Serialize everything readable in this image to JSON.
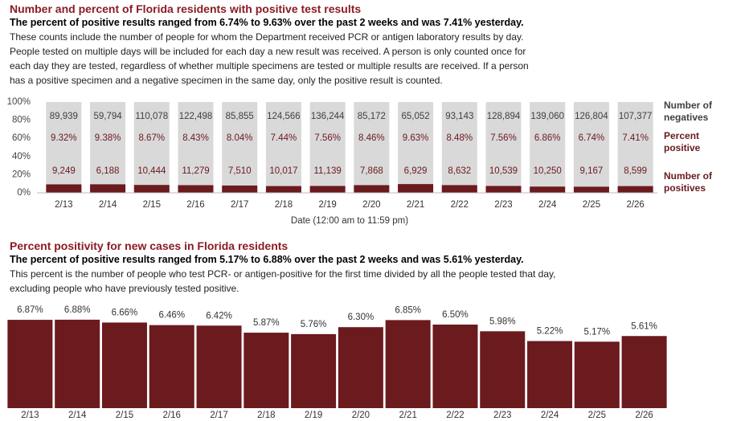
{
  "chart_data": [
    {
      "type": "percent_bar",
      "title": "Number and percent of Florida residents with positive test results",
      "subtitle": "The percent of positive results ranged from 6.74% to 9.63% over the past 2 weeks and was 7.41% yesterday.",
      "description": [
        "These counts include the number of people for whom the Department received PCR or antigen laboratory results by day.",
        "People tested on multiple days will be included for each day a new result was received. A person is only counted once for",
        "each day they are tested, regardless of whether multiple specimens are tested or multiple results are received. If a person",
        "has a positive specimen and a negative specimen in the same day, only the positive result is counted."
      ],
      "x_label": "Date (12:00 am to 11:59 pm)",
      "categories": [
        "2/13",
        "2/14",
        "2/15",
        "2/16",
        "2/17",
        "2/18",
        "2/19",
        "2/20",
        "2/21",
        "2/22",
        "2/23",
        "2/24",
        "2/25",
        "2/26"
      ],
      "ylim": [
        0,
        100
      ],
      "yticks": [
        {
          "value": 0,
          "label": "0%"
        },
        {
          "value": 20,
          "label": "20%"
        },
        {
          "value": 40,
          "label": "40%"
        },
        {
          "value": 60,
          "label": "60%"
        },
        {
          "value": 80,
          "label": "80%"
        },
        {
          "value": 100,
          "label": "100%"
        }
      ],
      "track_color": "#d9d9d9",
      "series": [
        {
          "name": "Number of negatives",
          "color": "#404040",
          "mark": "label",
          "values": [
            89939,
            59794,
            110078,
            122498,
            85855,
            124566,
            136244,
            85172,
            65052,
            93143,
            128894,
            139060,
            126804,
            107377
          ],
          "value_labels": [
            "89,939",
            "59,794",
            "110,078",
            "122,498",
            "85,855",
            "124,566",
            "136,244",
            "85,172",
            "65,052",
            "93,143",
            "128,894",
            "139,060",
            "126,804",
            "107,377"
          ]
        },
        {
          "name": "Percent positive",
          "color": "#6b1a1e",
          "mark": "bar",
          "values": [
            9.32,
            9.38,
            8.67,
            8.43,
            8.04,
            7.44,
            7.56,
            8.46,
            9.63,
            8.48,
            7.56,
            6.86,
            6.74,
            7.41
          ],
          "value_labels": [
            "9.32%",
            "9.38%",
            "8.67%",
            "8.43%",
            "8.04%",
            "7.44%",
            "7.56%",
            "8.46%",
            "9.63%",
            "8.48%",
            "7.56%",
            "6.86%",
            "6.74%",
            "7.41%"
          ]
        },
        {
          "name": "Number of positives",
          "color": "#6b1a1e",
          "mark": "label",
          "values": [
            9249,
            6188,
            10444,
            11279,
            7510,
            10017,
            11139,
            7868,
            6929,
            8632,
            10539,
            10250,
            9167,
            8599
          ],
          "value_labels": [
            "9,249",
            "6,188",
            "10,444",
            "11,279",
            "7,510",
            "10,017",
            "11,139",
            "7,868",
            "6,929",
            "8,632",
            "10,539",
            "10,250",
            "9,167",
            "8,599"
          ]
        }
      ]
    },
    {
      "type": "bar",
      "title": "Percent positivity for new cases in Florida residents",
      "subtitle": "The percent of positive results ranged from 5.17% to 6.88% over the past 2 weeks and was 5.61% yesterday.",
      "description": [
        "This percent is the number of people who test PCR- or antigen-positive for the first time divided by all the people tested that day,",
        "excluding people who have previously tested positive."
      ],
      "categories": [
        "2/13",
        "2/14",
        "2/15",
        "2/16",
        "2/17",
        "2/18",
        "2/19",
        "2/20",
        "2/21",
        "2/22",
        "2/23",
        "2/24",
        "2/25",
        "2/26"
      ],
      "color": "#6b1a1e",
      "ylim": [
        0,
        7
      ],
      "values": [
        6.87,
        6.88,
        6.66,
        6.46,
        6.42,
        5.87,
        5.76,
        6.3,
        6.85,
        6.5,
        5.98,
        5.22,
        5.17,
        5.61
      ],
      "value_labels": [
        "6.87%",
        "6.88%",
        "6.66%",
        "6.46%",
        "6.42%",
        "5.87%",
        "5.76%",
        "6.30%",
        "6.85%",
        "6.50%",
        "5.98%",
        "5.22%",
        "5.17%",
        "5.61%"
      ]
    }
  ]
}
